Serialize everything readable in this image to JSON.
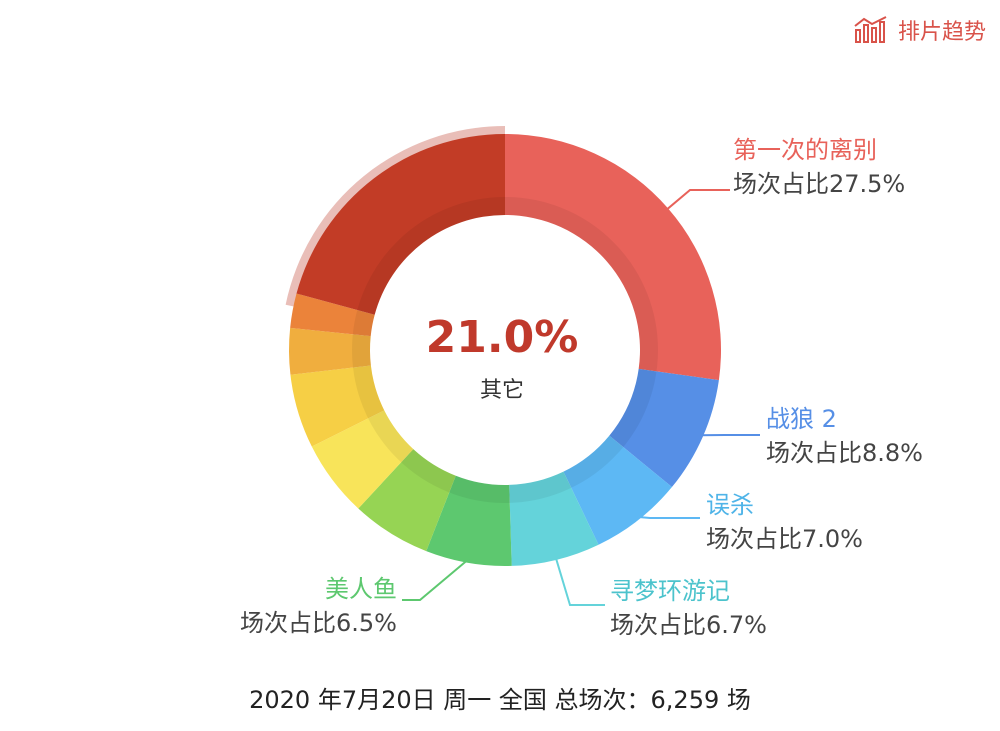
{
  "header": {
    "trend_label": "排片趋势"
  },
  "chart_data": {
    "type": "pie",
    "center": {
      "value": "21.0%",
      "label": "其它"
    },
    "slices": [
      {
        "name": "第一次的离别",
        "value": 27.5,
        "color": "#e8625a",
        "pct_label": "场次占比27.5%"
      },
      {
        "name": "战狼 2",
        "value": 8.8,
        "color": "#568fe6",
        "pct_label": "场次占比8.8%"
      },
      {
        "name": "误杀",
        "value": 7.0,
        "color": "#5db8f4",
        "pct_label": "场次占比7.0%"
      },
      {
        "name": "寻梦环游记",
        "value": 6.7,
        "color": "#64d3da",
        "pct_label": "场次占比6.7%"
      },
      {
        "name": "美人鱼",
        "value": 6.5,
        "color": "#5dc86f",
        "pct_label": "场次占比6.5%"
      },
      {
        "name": "",
        "value": 6.0,
        "color": "#96d454"
      },
      {
        "name": "",
        "value": 5.8,
        "color": "#f8e45a"
      },
      {
        "name": "",
        "value": 5.6,
        "color": "#f6cf45"
      },
      {
        "name": "",
        "value": 3.5,
        "color": "#f0ae3e"
      },
      {
        "name": "",
        "value": 2.6,
        "color": "#eb833a"
      },
      {
        "name": "其它",
        "value": 21.0,
        "color": "#c23c26",
        "highlight": true
      }
    ]
  },
  "footer": {
    "text": "2020 年7月20日  周一  全国   总场次：6,259 场"
  }
}
